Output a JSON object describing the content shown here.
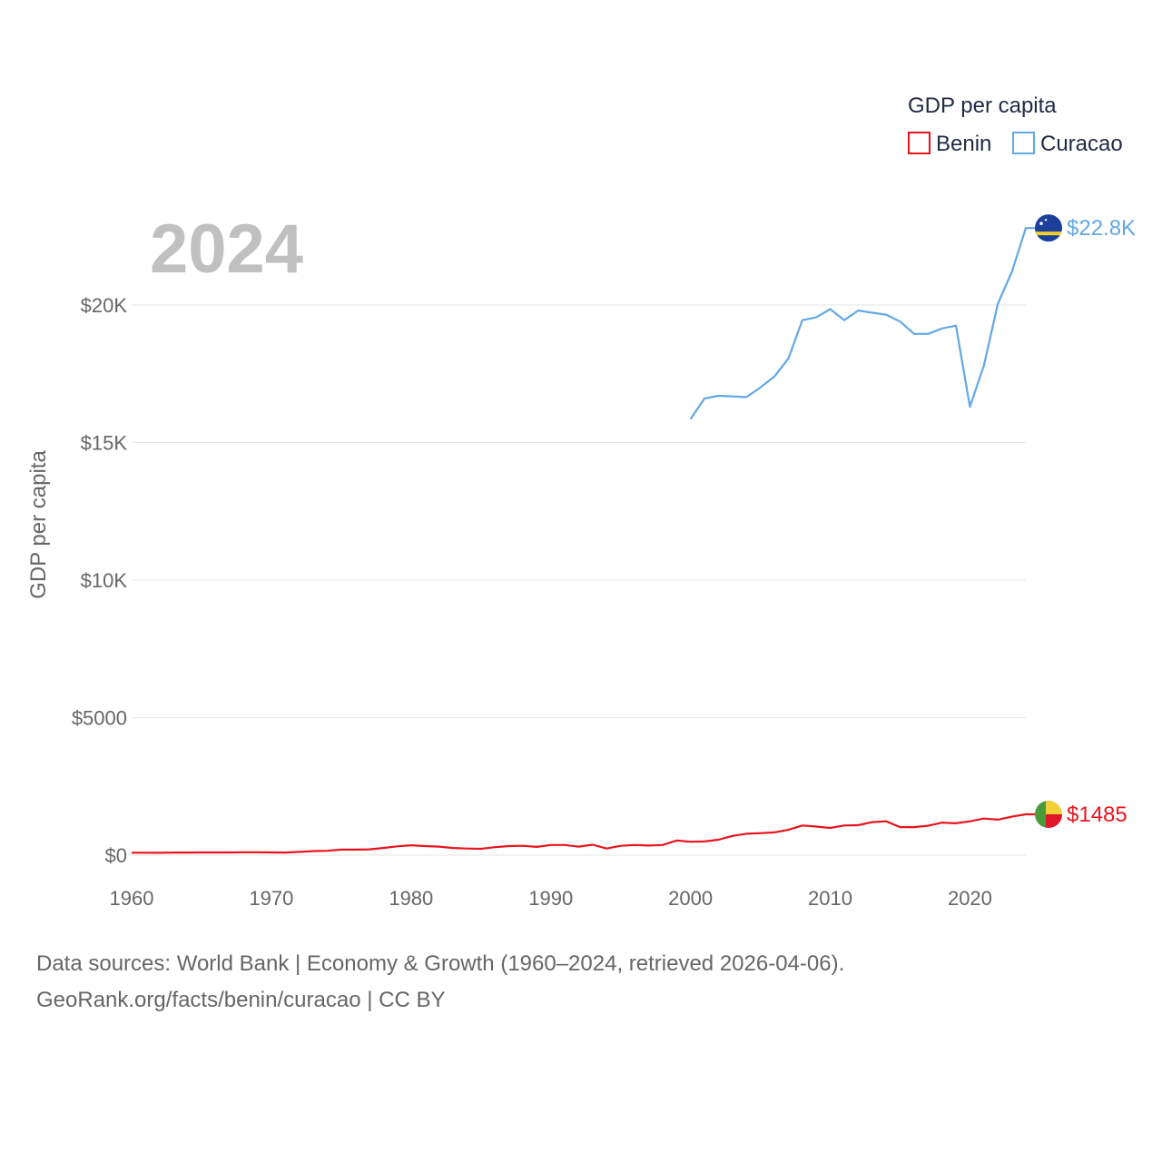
{
  "chart_data": {
    "type": "line",
    "year_label": "2024",
    "ylabel": "GDP per capita",
    "xlim": [
      1960,
      2024
    ],
    "ylim": [
      0,
      23000
    ],
    "x_ticks": [
      1960,
      1970,
      1980,
      1990,
      2000,
      2010,
      2020
    ],
    "x_tick_labels": [
      "1960",
      "1970",
      "1980",
      "1990",
      "2000",
      "2010",
      "2020"
    ],
    "y_ticks": [
      0,
      5000,
      10000,
      15000,
      20000
    ],
    "y_tick_labels": [
      "$0",
      "$5000",
      "$10K",
      "$15K",
      "$20K"
    ],
    "legend": {
      "title": "GDP per capita",
      "position": "top-right"
    },
    "series": [
      {
        "name": "Benin",
        "color": "#e8141c",
        "end_label": "$1485",
        "flag": "benin",
        "points": [
          [
            1960,
            90
          ],
          [
            1961,
            90
          ],
          [
            1962,
            85
          ],
          [
            1963,
            95
          ],
          [
            1964,
            95
          ],
          [
            1965,
            100
          ],
          [
            1966,
            100
          ],
          [
            1967,
            100
          ],
          [
            1968,
            105
          ],
          [
            1969,
            105
          ],
          [
            1970,
            100
          ],
          [
            1971,
            95
          ],
          [
            1972,
            120
          ],
          [
            1973,
            150
          ],
          [
            1974,
            160
          ],
          [
            1975,
            200
          ],
          [
            1976,
            200
          ],
          [
            1977,
            210
          ],
          [
            1978,
            260
          ],
          [
            1979,
            320
          ],
          [
            1980,
            360
          ],
          [
            1981,
            330
          ],
          [
            1982,
            310
          ],
          [
            1983,
            260
          ],
          [
            1984,
            240
          ],
          [
            1985,
            230
          ],
          [
            1986,
            290
          ],
          [
            1987,
            330
          ],
          [
            1988,
            340
          ],
          [
            1989,
            300
          ],
          [
            1990,
            370
          ],
          [
            1991,
            370
          ],
          [
            1992,
            310
          ],
          [
            1993,
            380
          ],
          [
            1994,
            240
          ],
          [
            1995,
            340
          ],
          [
            1996,
            370
          ],
          [
            1997,
            350
          ],
          [
            1998,
            370
          ],
          [
            1999,
            530
          ],
          [
            2000,
            490
          ],
          [
            2001,
            500
          ],
          [
            2002,
            560
          ],
          [
            2003,
            700
          ],
          [
            2004,
            780
          ],
          [
            2005,
            800
          ],
          [
            2006,
            830
          ],
          [
            2007,
            920
          ],
          [
            2008,
            1080
          ],
          [
            2009,
            1040
          ],
          [
            2010,
            990
          ],
          [
            2011,
            1080
          ],
          [
            2012,
            1090
          ],
          [
            2013,
            1200
          ],
          [
            2014,
            1230
          ],
          [
            2015,
            1020
          ],
          [
            2016,
            1020
          ],
          [
            2017,
            1070
          ],
          [
            2018,
            1180
          ],
          [
            2019,
            1160
          ],
          [
            2020,
            1230
          ],
          [
            2021,
            1330
          ],
          [
            2022,
            1290
          ],
          [
            2023,
            1400
          ],
          [
            2024,
            1485
          ]
        ]
      },
      {
        "name": "Curacao",
        "color": "#62a8e5",
        "end_label": "$22.8K",
        "flag": "curacao",
        "points": [
          [
            2000,
            15850
          ],
          [
            2001,
            16600
          ],
          [
            2002,
            16700
          ],
          [
            2003,
            16680
          ],
          [
            2004,
            16650
          ],
          [
            2005,
            17000
          ],
          [
            2006,
            17400
          ],
          [
            2007,
            18050
          ],
          [
            2008,
            19450
          ],
          [
            2009,
            19550
          ],
          [
            2010,
            19850
          ],
          [
            2011,
            19450
          ],
          [
            2012,
            19800
          ],
          [
            2013,
            19720
          ],
          [
            2014,
            19650
          ],
          [
            2015,
            19400
          ],
          [
            2016,
            18950
          ],
          [
            2017,
            18950
          ],
          [
            2018,
            19150
          ],
          [
            2019,
            19250
          ],
          [
            2020,
            16300
          ],
          [
            2021,
            17800
          ],
          [
            2022,
            20050
          ],
          [
            2023,
            21200
          ],
          [
            2024,
            22800
          ]
        ]
      }
    ]
  },
  "footer": {
    "line1": "Data sources: World Bank | Economy & Growth (1960–2024, retrieved 2026-04-06).",
    "line2": "GeoRank.org/facts/benin/curacao | CC BY"
  }
}
